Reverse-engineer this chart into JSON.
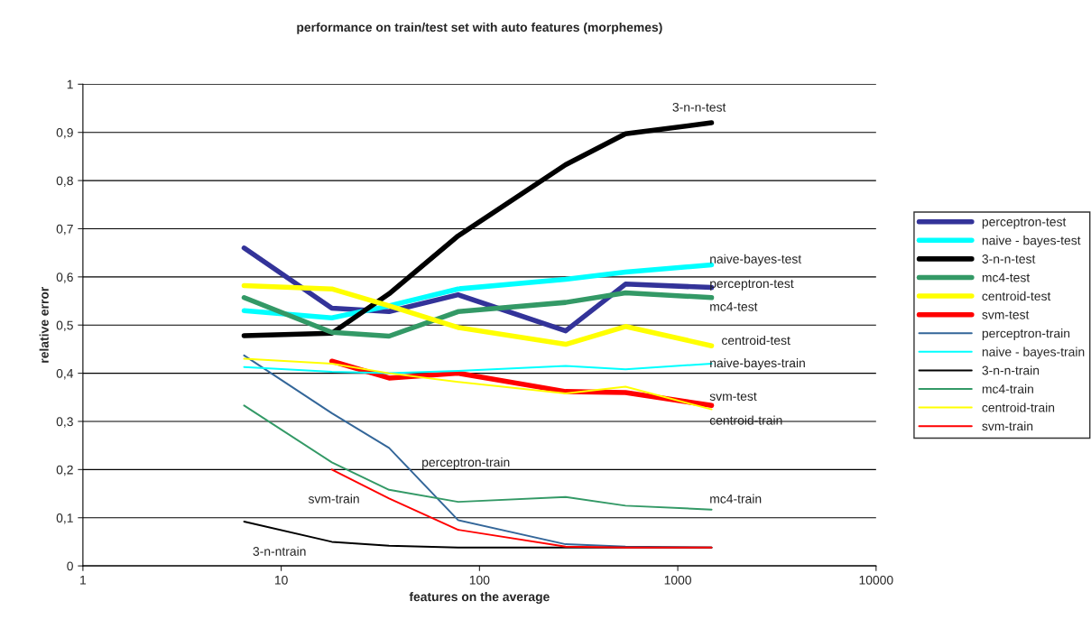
{
  "chart_data": {
    "type": "line",
    "title": "performance on train/test set with auto features (morphemes)",
    "xlabel": "features on the average",
    "ylabel": "relative error",
    "x": [
      6.5,
      18,
      35,
      78,
      272,
      545,
      1480
    ],
    "log": "x",
    "grid": "y",
    "legend": "right",
    "marker": "none",
    "xlim": [
      1,
      10000
    ],
    "xticks": [
      1,
      10,
      100,
      1000,
      10000
    ],
    "ylim": [
      0,
      1
    ],
    "yticks": [
      0,
      {
        "value": 0.1,
        "label": "0,1"
      },
      {
        "value": 0.2,
        "label": "0,2"
      },
      {
        "value": 0.3,
        "label": "0,3"
      },
      {
        "value": 0.4,
        "label": "0,4"
      },
      {
        "value": 0.5,
        "label": "0,5"
      },
      {
        "value": 0.6,
        "label": "0,6"
      },
      {
        "value": 0.7,
        "label": "0,7"
      },
      {
        "value": 0.8,
        "label": "0,8"
      },
      {
        "value": 0.9,
        "label": "0,9"
      },
      1
    ],
    "series": [
      {
        "name": "perceptron-test",
        "color": "#333399",
        "values": [
          0.66,
          0.535,
          0.528,
          0.563,
          0.488,
          0.585,
          0.578
        ]
      },
      {
        "name": "naive - bayes-test",
        "color": "#00ffff",
        "values": [
          0.53,
          0.515,
          0.54,
          0.575,
          0.595,
          0.61,
          0.625
        ]
      },
      {
        "name": "3-n-n-test",
        "color": "#000000",
        "values": [
          0.478,
          0.483,
          0.565,
          0.685,
          0.833,
          0.897,
          0.92
        ]
      },
      {
        "name": "mc4-test",
        "color": "#339966",
        "values": [
          0.557,
          0.485,
          0.477,
          0.528,
          0.547,
          0.567,
          0.557
        ]
      },
      {
        "name": "centroid-test",
        "color": "#ffff00",
        "values": [
          0.582,
          0.575,
          0.54,
          0.495,
          0.46,
          0.497,
          0.457
        ]
      },
      {
        "name": "svm-test",
        "color": "#ff0000",
        "values": [
          null,
          0.425,
          0.39,
          0.4,
          0.362,
          0.36,
          0.333
        ]
      },
      {
        "name": "perceptron-train",
        "color": "#336699",
        "values": [
          0.437,
          0.317,
          0.245,
          0.095,
          0.045,
          0.04,
          0.038
        ]
      },
      {
        "name": "naive - bayes-train",
        "color": "#00ffff",
        "values": [
          0.413,
          0.403,
          0.4,
          0.405,
          0.415,
          0.408,
          0.42
        ]
      },
      {
        "name": "3-n-n-train",
        "color": "#000000",
        "values": [
          0.092,
          0.05,
          0.042,
          0.038,
          0.038,
          0.038,
          0.038
        ]
      },
      {
        "name": "mc4-train",
        "color": "#339966",
        "values": [
          0.333,
          0.215,
          0.158,
          0.133,
          0.143,
          0.125,
          0.117
        ]
      },
      {
        "name": "centroid-train",
        "color": "#ffff00",
        "values": [
          0.43,
          0.42,
          0.4,
          0.382,
          0.358,
          0.372,
          0.325
        ]
      },
      {
        "name": "svm-train",
        "color": "#ff0000",
        "values": [
          null,
          0.2,
          0.14,
          0.075,
          0.04,
          0.038,
          0.038
        ]
      }
    ],
    "annotations": [
      "3-n-n-test",
      "naive-bayes-test",
      "perceptron-test",
      "mc4-test",
      "centroid-test",
      "naive-bayes-train",
      "svm-test",
      "centroid-train",
      "perceptron-train",
      "mc4-train",
      "svm-train",
      "3-n-ntrain"
    ]
  }
}
